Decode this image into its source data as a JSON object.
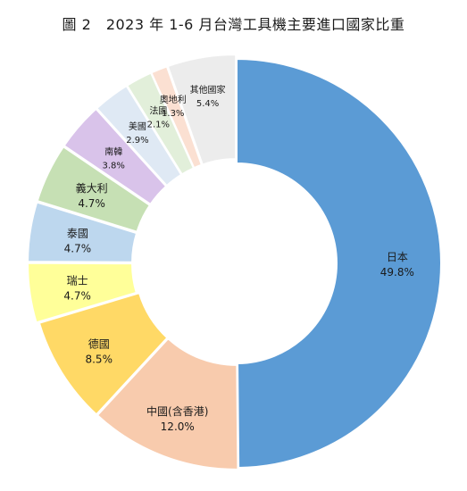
{
  "chart_data": {
    "type": "pie",
    "variant": "donut",
    "title": "圖 2　2023 年 1-6 月台灣工具機主要進口國家比重",
    "unit": "%",
    "slices": [
      {
        "label": "日本",
        "value": 49.8,
        "display": "49.8%",
        "color": "#5b9bd5"
      },
      {
        "label": "中國(含香港)",
        "value": 12.0,
        "display": "12.0%",
        "color": "#f8cbad"
      },
      {
        "label": "德國",
        "value": 8.5,
        "display": "8.5%",
        "color": "#ffd966"
      },
      {
        "label": "瑞士",
        "value": 4.7,
        "display": "4.7%",
        "color": "#ffff99"
      },
      {
        "label": "泰國",
        "value": 4.7,
        "display": "4.7%",
        "color": "#bdd7ee"
      },
      {
        "label": "義大利",
        "value": 4.7,
        "display": "4.7%",
        "color": "#c6e0b4"
      },
      {
        "label": "南韓",
        "value": 3.8,
        "display": "3.8%",
        "color": "#d9c3ea"
      },
      {
        "label": "美國",
        "value": 2.9,
        "display": "2.9%",
        "color": "#dfe9f4"
      },
      {
        "label": "法國",
        "value": 2.1,
        "display": "2.1%",
        "color": "#e2efda"
      },
      {
        "label": "奧地利",
        "value": 1.3,
        "display": "1.3%",
        "color": "#fbe0d2"
      },
      {
        "label": "其他國家",
        "value": 5.4,
        "display": "5.4%",
        "color": "#ececec"
      }
    ]
  }
}
